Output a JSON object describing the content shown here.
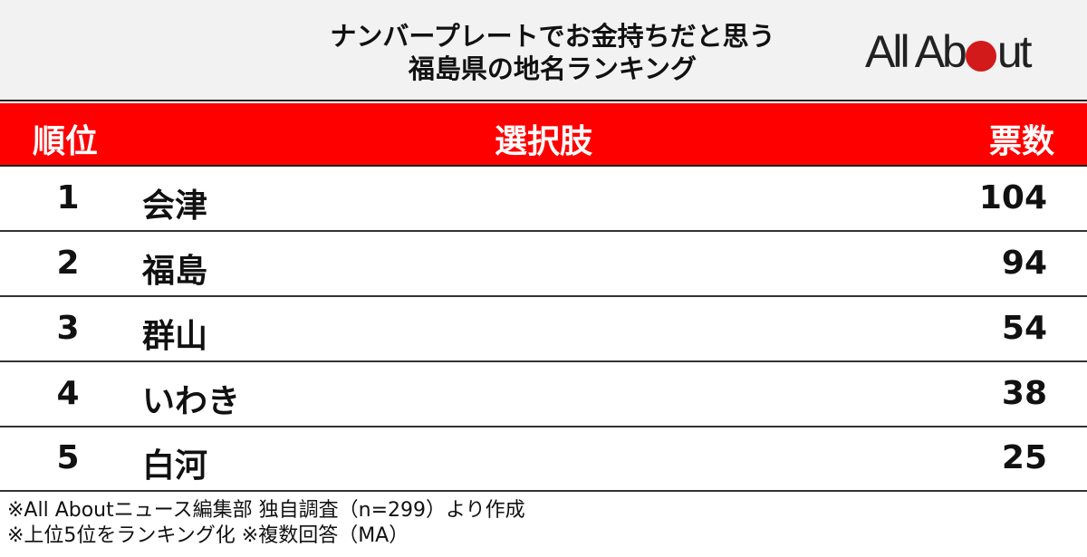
{
  "title": {
    "line1": "ナンバープレートでお金持ちだと思う",
    "line2": "福島県の地名ランキング"
  },
  "logo": {
    "text_before": "All Ab",
    "text_after": "ut",
    "accent": "#d21a1a"
  },
  "table": {
    "headers": {
      "rank": "順位",
      "choice": "選択肢",
      "votes": "票数"
    },
    "header_color": "#ff0000",
    "rows": [
      {
        "rank": "1",
        "name": "会津",
        "votes": "104"
      },
      {
        "rank": "2",
        "name": "福島",
        "votes": "94"
      },
      {
        "rank": "3",
        "name": "群山",
        "votes": "54"
      },
      {
        "rank": "4",
        "name": "いわき",
        "votes": "38"
      },
      {
        "rank": "5",
        "name": "白河",
        "votes": "25"
      }
    ]
  },
  "footer": {
    "line1": "※All Aboutニュース編集部 独自調査（n=299）より作成",
    "line2": "※上位5位をランキング化 ※複数回答（MA）"
  }
}
